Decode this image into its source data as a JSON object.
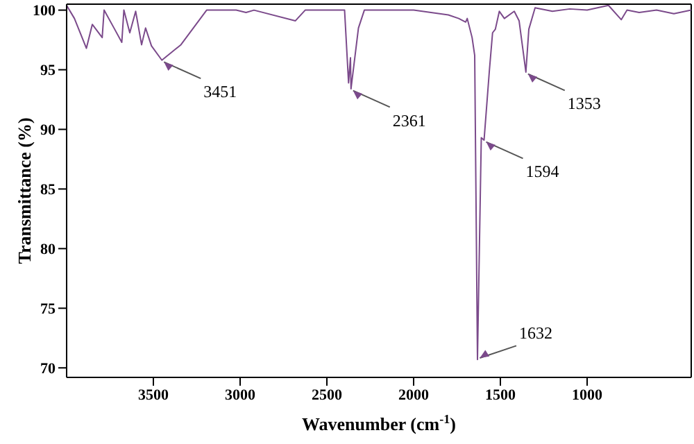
{
  "chart_data": {
    "type": "line",
    "xlabel": "Wavenumber (cm$^{-1}$)",
    "ylabel": "Transmittance (%)",
    "x": [
      4000,
      3955,
      3886,
      3852,
      3795,
      3784,
      3727,
      3682,
      3670,
      3636,
      3602,
      3568,
      3545,
      3511,
      3451,
      3341,
      3193,
      3023,
      2966,
      2920,
      2682,
      2625,
      2398,
      2375,
      2364,
      2361,
      2318,
      2284,
      2150,
      2000,
      1900,
      1800,
      1740,
      1700,
      1691,
      1663,
      1648,
      1632,
      1610,
      1594,
      1563,
      1545,
      1529,
      1506,
      1477,
      1420,
      1392,
      1353,
      1336,
      1300,
      1200,
      1100,
      1000,
      877,
      803,
      770,
      700,
      600,
      500,
      400
    ],
    "series": [
      {
        "color": "#7b4a8b",
        "values": [
          100.4,
          99.3,
          96.8,
          98.8,
          97.7,
          100,
          98.5,
          97.3,
          100,
          98.1,
          99.9,
          97.1,
          98.5,
          97.0,
          95.8,
          97.1,
          100,
          100,
          99.8,
          100,
          99.1,
          100,
          100,
          93.9,
          96.0,
          93.4,
          98.5,
          100,
          100,
          100,
          99.8,
          99.6,
          99.3,
          99.0,
          99.3,
          97.7,
          96.2,
          70.7,
          89.3,
          89.1,
          95.0,
          98.1,
          98.4,
          99.9,
          99.3,
          99.9,
          99.1,
          94.8,
          98.4,
          100.2,
          99.9,
          100.1,
          100,
          100.4,
          99.2,
          100,
          99.8,
          100,
          99.7,
          100
        ]
      }
    ],
    "xlim": [
      4000,
      400
    ],
    "xticks": [
      3500,
      3000,
      2500,
      2000,
      1500,
      1000
    ],
    "ylim": [
      69.2,
      100.5
    ],
    "yticks": [
      70,
      75,
      80,
      85,
      90,
      95,
      100
    ],
    "grid": false,
    "legend": false,
    "marker": "none",
    "line_style": "solid",
    "annotations": [
      {
        "text": "3451",
        "x": 3451,
        "y": 95.8
      },
      {
        "text": "2361",
        "x": 2361,
        "y": 93.4
      },
      {
        "text": "1632",
        "x": 1632,
        "y": 70.7
      },
      {
        "text": "1594",
        "x": 1594,
        "y": 89.1
      },
      {
        "text": "1353",
        "x": 1353,
        "y": 94.8
      }
    ]
  }
}
